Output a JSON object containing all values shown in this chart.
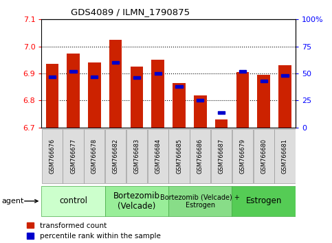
{
  "title": "GDS4089 / ILMN_1790875",
  "samples": [
    "GSM766676",
    "GSM766677",
    "GSM766678",
    "GSM766682",
    "GSM766683",
    "GSM766684",
    "GSM766685",
    "GSM766686",
    "GSM766687",
    "GSM766679",
    "GSM766680",
    "GSM766681"
  ],
  "transformed_count": [
    6.935,
    6.975,
    6.94,
    7.025,
    6.925,
    6.95,
    6.865,
    6.82,
    6.73,
    6.905,
    6.895,
    6.93
  ],
  "percentile_rank": [
    47,
    52,
    47,
    60,
    46,
    50,
    38,
    25,
    14,
    52,
    43,
    48
  ],
  "y_min": 6.7,
  "y_max": 7.1,
  "y_ticks": [
    6.7,
    6.8,
    6.9,
    7.0,
    7.1
  ],
  "y2_ticks": [
    0,
    25,
    50,
    75,
    100
  ],
  "bar_color": "#cc2200",
  "percentile_color": "#0000cc",
  "groups": [
    {
      "label": "control",
      "start": 0,
      "end": 2,
      "color": "#ccffcc"
    },
    {
      "label": "Bortezomib\n(Velcade)",
      "start": 3,
      "end": 5,
      "color": "#99ee99"
    },
    {
      "label": "Bortezomib (Velcade) +\nEstrogen",
      "start": 6,
      "end": 8,
      "color": "#88dd88"
    },
    {
      "label": "Estrogen",
      "start": 9,
      "end": 11,
      "color": "#55cc55"
    }
  ],
  "agent_label": "agent",
  "legend_items": [
    {
      "color": "#cc2200",
      "label": "transformed count"
    },
    {
      "color": "#0000cc",
      "label": "percentile rank within the sample"
    }
  ],
  "grid_lines": [
    6.8,
    6.9,
    7.0
  ],
  "fig_width": 4.83,
  "fig_height": 3.54,
  "dpi": 100
}
